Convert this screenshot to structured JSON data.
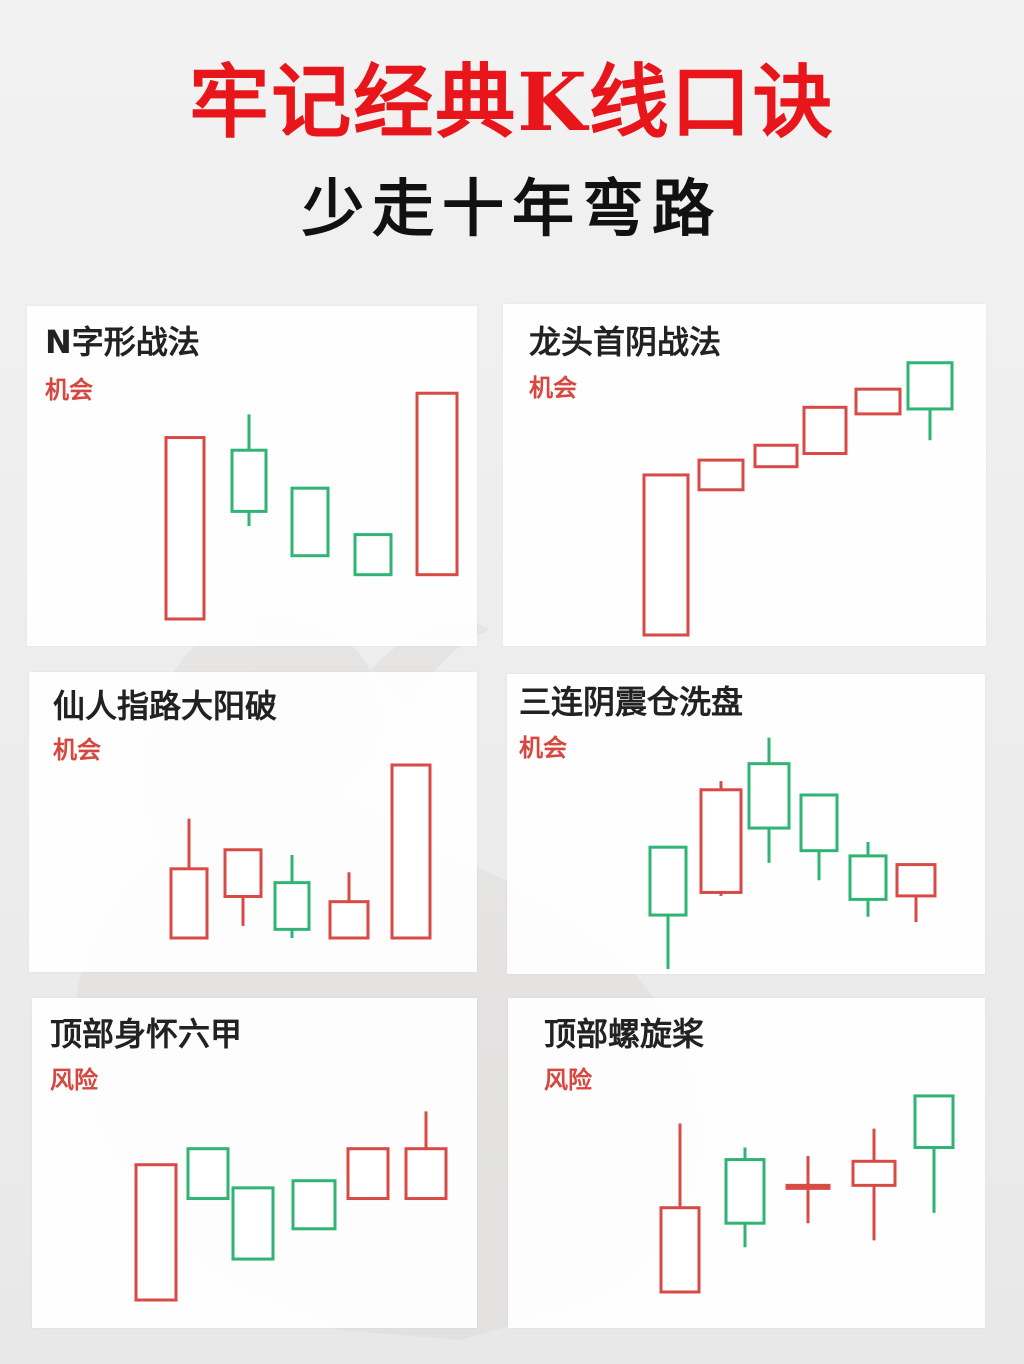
{
  "page": {
    "title": "牢记经典K线口诀",
    "subtitle": "少走十年弯路"
  },
  "colors": {
    "up": "#d84a45",
    "down": "#2fb474",
    "title": "#e8161a"
  },
  "chart_data": [
    {
      "type": "candlestick",
      "title": "N字形战法",
      "tag": "机会",
      "candles": [
        {
          "color": "up",
          "open": 0,
          "close": 86,
          "high": 86,
          "low": 0
        },
        {
          "color": "down",
          "open": 80,
          "close": 51,
          "high": 97,
          "low": 44
        },
        {
          "color": "down",
          "open": 62,
          "close": 30,
          "high": 62,
          "low": 30
        },
        {
          "color": "down",
          "open": 40,
          "close": 21,
          "high": 40,
          "low": 21
        },
        {
          "color": "up",
          "open": 21,
          "close": 107,
          "high": 107,
          "low": 21
        }
      ]
    },
    {
      "type": "candlestick",
      "title": "龙头首阴战法",
      "tag": "机会",
      "candles": [
        {
          "color": "up",
          "open": 0,
          "close": 97,
          "high": 97,
          "low": 0
        },
        {
          "color": "up",
          "open": 88,
          "close": 106,
          "high": 106,
          "low": 88
        },
        {
          "color": "up",
          "open": 102,
          "close": 115,
          "high": 115,
          "low": 102
        },
        {
          "color": "up",
          "open": 110,
          "close": 138,
          "high": 138,
          "low": 110
        },
        {
          "color": "up",
          "open": 134,
          "close": 149,
          "high": 149,
          "low": 134
        },
        {
          "color": "down",
          "open": 165,
          "close": 137,
          "high": 165,
          "low": 118
        }
      ]
    },
    {
      "type": "candlestick",
      "title": "仙人指路大阳破",
      "tag": "机会",
      "candles": [
        {
          "color": "up",
          "open": 0,
          "close": 40,
          "high": 69,
          "low": 0
        },
        {
          "color": "up",
          "open": 24,
          "close": 51,
          "high": 51,
          "low": 7
        },
        {
          "color": "down",
          "open": 32,
          "close": 5,
          "high": 48,
          "low": 0
        },
        {
          "color": "up",
          "open": 0,
          "close": 21,
          "high": 38,
          "low": 0
        },
        {
          "color": "up",
          "open": 0,
          "close": 100,
          "high": 100,
          "low": 0
        }
      ]
    },
    {
      "type": "candlestick",
      "title": "三连阴震仓洗盘",
      "tag": "机会",
      "candles": [
        {
          "color": "down",
          "open": 70,
          "close": 31,
          "high": 70,
          "low": 0
        },
        {
          "color": "up",
          "open": 44,
          "close": 103,
          "high": 108,
          "low": 42
        },
        {
          "color": "down",
          "open": 118,
          "close": 81,
          "high": 133,
          "low": 61
        },
        {
          "color": "down",
          "open": 100,
          "close": 68,
          "high": 100,
          "low": 51
        },
        {
          "color": "down",
          "open": 65,
          "close": 40,
          "high": 73,
          "low": 30
        },
        {
          "color": "up",
          "open": 42,
          "close": 60,
          "high": 60,
          "low": 27
        }
      ]
    },
    {
      "type": "candlestick",
      "title": "顶部身怀六甲",
      "tag": "风险",
      "candles": [
        {
          "color": "up",
          "open": 0,
          "close": 76,
          "high": 76,
          "low": 0
        },
        {
          "color": "down",
          "open": 85,
          "close": 57,
          "high": 85,
          "low": 57
        },
        {
          "color": "down",
          "open": 63,
          "close": 23,
          "high": 63,
          "low": 23
        },
        {
          "color": "down",
          "open": 67,
          "close": 40,
          "high": 67,
          "low": 40
        },
        {
          "color": "up",
          "open": 57,
          "close": 85,
          "high": 85,
          "low": 57
        },
        {
          "color": "up",
          "open": 57,
          "close": 85,
          "high": 106,
          "low": 57
        }
      ]
    },
    {
      "type": "candlestick",
      "title": "顶部螺旋桨",
      "tag": "风险",
      "candles": [
        {
          "color": "up",
          "open": 0,
          "close": 49,
          "high": 98,
          "low": 0
        },
        {
          "color": "down",
          "open": 77,
          "close": 40,
          "high": 84,
          "low": 26
        },
        {
          "color": "up",
          "open": 62,
          "close": 62,
          "high": 79,
          "low": 40
        },
        {
          "color": "up",
          "open": 62,
          "close": 76,
          "high": 95,
          "low": 30
        },
        {
          "color": "down",
          "open": 114,
          "close": 84,
          "high": 114,
          "low": 46
        }
      ]
    }
  ]
}
